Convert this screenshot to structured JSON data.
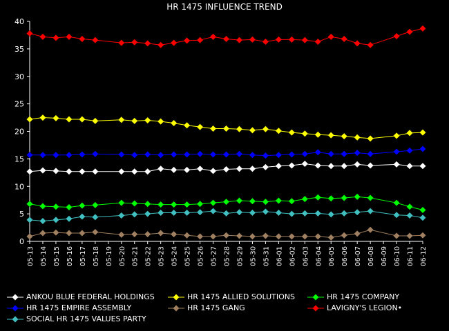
{
  "chart_data": {
    "type": "line",
    "title": "HR 1475 INFLUENCE TREND",
    "xlabel": "",
    "ylabel": "",
    "ylim": [
      0,
      40
    ],
    "yticks": [
      0,
      5,
      10,
      15,
      20,
      25,
      30,
      35,
      40
    ],
    "grid": false,
    "legend_position": "bottom",
    "x": [
      "05-13",
      "05-14",
      "05-15",
      "05-16",
      "05-17",
      "05-18",
      "05-19",
      "05-20",
      "05-21",
      "05-22",
      "05-23",
      "05-24",
      "05-25",
      "05-26",
      "05-27",
      "05-28",
      "05-29",
      "05-30",
      "05-31",
      "06-01",
      "06-02",
      "06-03",
      "06-04",
      "06-05",
      "06-06",
      "06-07",
      "06-08",
      "06-09",
      "06-10",
      "06-11",
      "06-12"
    ],
    "x_ticklabels": [
      "05-13",
      "05-14",
      "05-15",
      "05-16",
      "05-17",
      "05-18",
      "05-19",
      "05-20",
      "05-21",
      "05-22",
      "05-23",
      "05-24",
      "05-25",
      "05-26",
      "05-27",
      "05-28",
      "05-29",
      "05-30",
      "05-31",
      "06-01",
      "06-02",
      "06-03",
      "06-04",
      "06-05",
      "06-06",
      "06-07",
      "06-08",
      "06-09",
      "06-10",
      "06-11",
      "06-12"
    ],
    "series": [
      {
        "name": "ANKOU BLUE FEDERAL HOLDINGS",
        "color": "#ffffff",
        "points": [
          [
            "05-13",
            12.7
          ],
          [
            "05-14",
            12.9
          ],
          [
            "05-15",
            12.8
          ],
          [
            "05-16",
            12.7
          ],
          [
            "05-17",
            12.7
          ],
          [
            "05-18",
            12.7
          ],
          [
            "05-20",
            12.7
          ],
          [
            "05-21",
            12.7
          ],
          [
            "05-22",
            12.7
          ],
          [
            "05-23",
            13.2
          ],
          [
            "05-24",
            13.0
          ],
          [
            "05-25",
            13.0
          ],
          [
            "05-26",
            13.2
          ],
          [
            "05-27",
            12.8
          ],
          [
            "05-28",
            13.1
          ],
          [
            "05-29",
            13.2
          ],
          [
            "05-30",
            13.2
          ],
          [
            "05-31",
            13.5
          ],
          [
            "06-01",
            13.7
          ],
          [
            "06-02",
            13.8
          ],
          [
            "06-03",
            14.1
          ],
          [
            "06-04",
            13.8
          ],
          [
            "06-05",
            13.7
          ],
          [
            "06-06",
            13.7
          ],
          [
            "06-07",
            14.0
          ],
          [
            "06-08",
            13.8
          ],
          [
            "06-10",
            14.0
          ],
          [
            "06-11",
            13.7
          ],
          [
            "06-12",
            13.7
          ]
        ]
      },
      {
        "name": "HR 1475 ALLIED SOLUTIONS",
        "color": "#ffff00",
        "points": [
          [
            "05-13",
            22.2
          ],
          [
            "05-14",
            22.5
          ],
          [
            "05-15",
            22.4
          ],
          [
            "05-16",
            22.2
          ],
          [
            "05-17",
            22.2
          ],
          [
            "05-18",
            21.9
          ],
          [
            "05-20",
            22.1
          ],
          [
            "05-21",
            21.9
          ],
          [
            "05-22",
            22.0
          ],
          [
            "05-23",
            21.8
          ],
          [
            "05-24",
            21.5
          ],
          [
            "05-25",
            21.1
          ],
          [
            "05-26",
            20.8
          ],
          [
            "05-27",
            20.5
          ],
          [
            "05-28",
            20.5
          ],
          [
            "05-29",
            20.4
          ],
          [
            "05-30",
            20.2
          ],
          [
            "05-31",
            20.4
          ],
          [
            "06-01",
            20.1
          ],
          [
            "06-02",
            19.8
          ],
          [
            "06-03",
            19.6
          ],
          [
            "06-04",
            19.4
          ],
          [
            "06-05",
            19.3
          ],
          [
            "06-06",
            19.1
          ],
          [
            "06-07",
            18.9
          ],
          [
            "06-08",
            18.7
          ],
          [
            "06-10",
            19.2
          ],
          [
            "06-11",
            19.7
          ],
          [
            "06-12",
            19.8
          ]
        ]
      },
      {
        "name": "HR 1475 COMPANY",
        "color": "#00ff00",
        "points": [
          [
            "05-13",
            6.8
          ],
          [
            "05-14",
            6.4
          ],
          [
            "05-15",
            6.3
          ],
          [
            "05-16",
            6.2
          ],
          [
            "05-17",
            6.5
          ],
          [
            "05-18",
            6.6
          ],
          [
            "05-20",
            7.0
          ],
          [
            "05-21",
            6.9
          ],
          [
            "05-22",
            6.8
          ],
          [
            "05-23",
            6.7
          ],
          [
            "05-24",
            6.7
          ],
          [
            "05-25",
            6.7
          ],
          [
            "05-26",
            6.8
          ],
          [
            "05-27",
            7.0
          ],
          [
            "05-28",
            7.2
          ],
          [
            "05-29",
            7.4
          ],
          [
            "05-30",
            7.3
          ],
          [
            "05-31",
            7.2
          ],
          [
            "06-01",
            7.4
          ],
          [
            "06-02",
            7.3
          ],
          [
            "06-03",
            7.7
          ],
          [
            "06-04",
            8.0
          ],
          [
            "06-05",
            7.8
          ],
          [
            "06-06",
            7.9
          ],
          [
            "06-07",
            8.1
          ],
          [
            "06-08",
            7.9
          ],
          [
            "06-10",
            7.0
          ],
          [
            "06-11",
            6.3
          ],
          [
            "06-12",
            5.7
          ]
        ]
      },
      {
        "name": "HR 1475 EMPIRE ASSEMBLY",
        "color": "#0000ff",
        "points": [
          [
            "05-13",
            15.7
          ],
          [
            "05-14",
            15.7
          ],
          [
            "05-15",
            15.7
          ],
          [
            "05-16",
            15.7
          ],
          [
            "05-17",
            15.8
          ],
          [
            "05-18",
            15.9
          ],
          [
            "05-20",
            15.8
          ],
          [
            "05-21",
            15.7
          ],
          [
            "05-22",
            15.8
          ],
          [
            "05-23",
            15.7
          ],
          [
            "05-24",
            15.8
          ],
          [
            "05-25",
            15.8
          ],
          [
            "05-26",
            15.9
          ],
          [
            "05-27",
            15.8
          ],
          [
            "05-28",
            15.8
          ],
          [
            "05-29",
            15.9
          ],
          [
            "05-30",
            15.7
          ],
          [
            "05-31",
            15.6
          ],
          [
            "06-01",
            15.7
          ],
          [
            "06-02",
            15.8
          ],
          [
            "06-03",
            15.9
          ],
          [
            "06-04",
            16.2
          ],
          [
            "06-05",
            15.9
          ],
          [
            "06-06",
            15.9
          ],
          [
            "06-07",
            16.1
          ],
          [
            "06-08",
            15.9
          ],
          [
            "06-10",
            16.3
          ],
          [
            "06-11",
            16.5
          ],
          [
            "06-12",
            16.8
          ]
        ]
      },
      {
        "name": "HR 1475 GANG",
        "color": "#a08060",
        "points": [
          [
            "05-13",
            0.9
          ],
          [
            "05-14",
            1.5
          ],
          [
            "05-15",
            1.6
          ],
          [
            "05-16",
            1.5
          ],
          [
            "05-17",
            1.5
          ],
          [
            "05-18",
            1.7
          ],
          [
            "05-20",
            1.2
          ],
          [
            "05-21",
            1.3
          ],
          [
            "05-22",
            1.3
          ],
          [
            "05-23",
            1.5
          ],
          [
            "05-24",
            1.3
          ],
          [
            "05-25",
            1.1
          ],
          [
            "05-26",
            0.9
          ],
          [
            "05-27",
            0.9
          ],
          [
            "05-28",
            1.1
          ],
          [
            "05-29",
            1.0
          ],
          [
            "05-30",
            0.9
          ],
          [
            "05-31",
            1.0
          ],
          [
            "06-01",
            0.9
          ],
          [
            "06-02",
            0.9
          ],
          [
            "06-03",
            0.9
          ],
          [
            "06-04",
            0.9
          ],
          [
            "06-05",
            0.7
          ],
          [
            "06-06",
            1.1
          ],
          [
            "06-07",
            1.4
          ],
          [
            "06-08",
            2.1
          ],
          [
            "06-10",
            1.0
          ],
          [
            "06-11",
            1.0
          ],
          [
            "06-12",
            1.1
          ]
        ]
      },
      {
        "name": "LAVIGNY'S LEGION•",
        "color": "#ff0000",
        "points": [
          [
            "05-13",
            37.8
          ],
          [
            "05-14",
            37.2
          ],
          [
            "05-15",
            37.0
          ],
          [
            "05-16",
            37.2
          ],
          [
            "05-17",
            36.8
          ],
          [
            "05-18",
            36.6
          ],
          [
            "05-20",
            36.1
          ],
          [
            "05-21",
            36.2
          ],
          [
            "05-22",
            36.0
          ],
          [
            "05-23",
            35.7
          ],
          [
            "05-24",
            36.1
          ],
          [
            "05-25",
            36.5
          ],
          [
            "05-26",
            36.6
          ],
          [
            "05-27",
            37.2
          ],
          [
            "05-28",
            36.8
          ],
          [
            "05-29",
            36.6
          ],
          [
            "05-30",
            36.7
          ],
          [
            "05-31",
            36.3
          ],
          [
            "06-01",
            36.7
          ],
          [
            "06-02",
            36.7
          ],
          [
            "06-03",
            36.6
          ],
          [
            "06-04",
            36.3
          ],
          [
            "06-05",
            37.2
          ],
          [
            "06-06",
            36.8
          ],
          [
            "06-07",
            36.0
          ],
          [
            "06-08",
            35.7
          ],
          [
            "06-10",
            37.3
          ],
          [
            "06-11",
            38.1
          ],
          [
            "06-12",
            38.7
          ]
        ]
      },
      {
        "name": "SOCIAL HR 1475 VALUES PARTY",
        "color": "#40c0c0",
        "points": [
          [
            "05-13",
            3.9
          ],
          [
            "05-14",
            3.7
          ],
          [
            "05-15",
            3.9
          ],
          [
            "05-16",
            4.1
          ],
          [
            "05-17",
            4.5
          ],
          [
            "05-18",
            4.4
          ],
          [
            "05-20",
            4.7
          ],
          [
            "05-21",
            4.9
          ],
          [
            "05-22",
            5.0
          ],
          [
            "05-23",
            5.2
          ],
          [
            "05-24",
            5.2
          ],
          [
            "05-25",
            5.2
          ],
          [
            "05-26",
            5.3
          ],
          [
            "05-27",
            5.5
          ],
          [
            "05-28",
            5.1
          ],
          [
            "05-29",
            5.3
          ],
          [
            "05-30",
            5.2
          ],
          [
            "05-31",
            5.4
          ],
          [
            "06-01",
            5.2
          ],
          [
            "06-02",
            5.0
          ],
          [
            "06-03",
            5.1
          ],
          [
            "06-04",
            5.1
          ],
          [
            "06-05",
            4.9
          ],
          [
            "06-06",
            5.1
          ],
          [
            "06-07",
            5.3
          ],
          [
            "06-08",
            5.5
          ],
          [
            "06-10",
            4.8
          ],
          [
            "06-11",
            4.7
          ],
          [
            "06-12",
            4.3
          ]
        ]
      }
    ]
  }
}
